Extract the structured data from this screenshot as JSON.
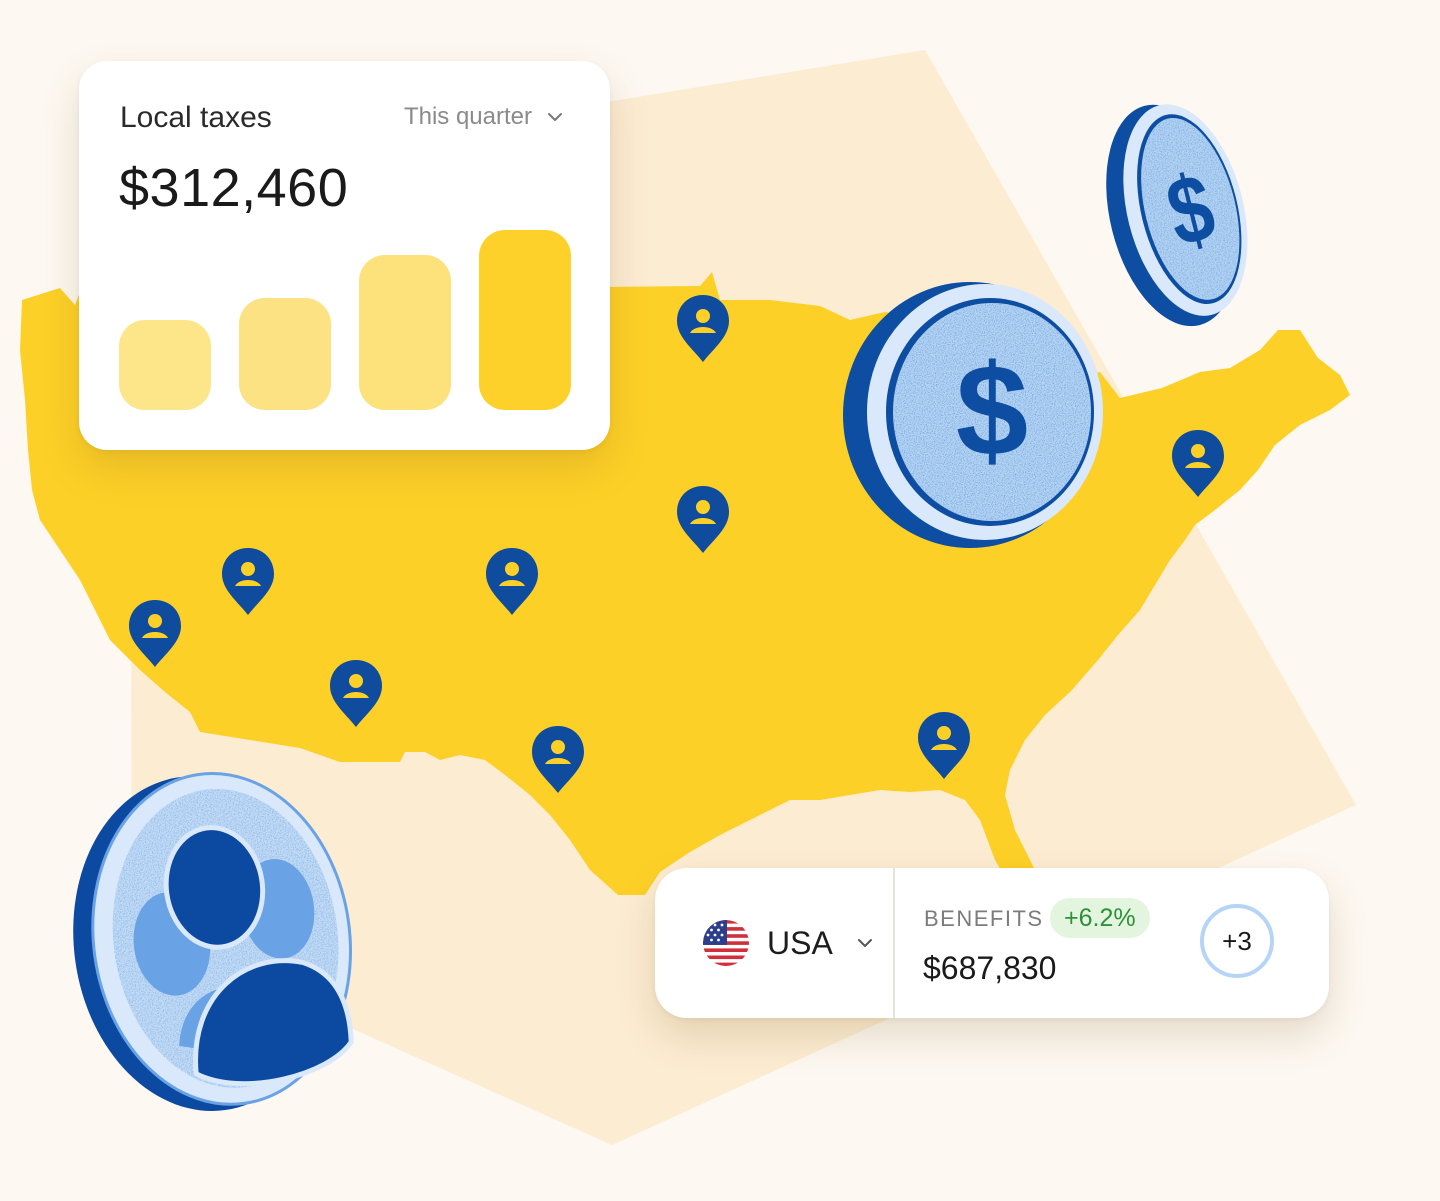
{
  "tax_card": {
    "title": "Local taxes",
    "period": "This quarter",
    "amount": "$312,460",
    "bars": [
      {
        "level": 0.5,
        "color": "#fde58a"
      },
      {
        "level": 0.62,
        "color": "#fde284"
      },
      {
        "level": 0.86,
        "color": "#fde27c"
      },
      {
        "level": 1.0,
        "color": "#fdd12a"
      }
    ]
  },
  "country_card": {
    "country": "USA",
    "benefits_label": "BENEFITS",
    "change": "+6.2%",
    "amount": "$687,830",
    "more_count": "+3"
  },
  "coins": [
    {
      "symbol": "$"
    },
    {
      "symbol": "$"
    }
  ],
  "colors": {
    "map_yellow": "#fdd027",
    "backdrop_peach": "#fcecd2",
    "pin_blue": "#0f4c9e",
    "coin_face": "#d9e8fb",
    "coin_rim": "#0d4ea3",
    "avatar_dark": "#0b4aa0",
    "avatar_light": "#6aa2e6"
  },
  "icons": [
    "location-pin-icon",
    "chevron-down-icon",
    "us-flag-icon",
    "dollar-coin-icon",
    "users-coin-icon"
  ]
}
